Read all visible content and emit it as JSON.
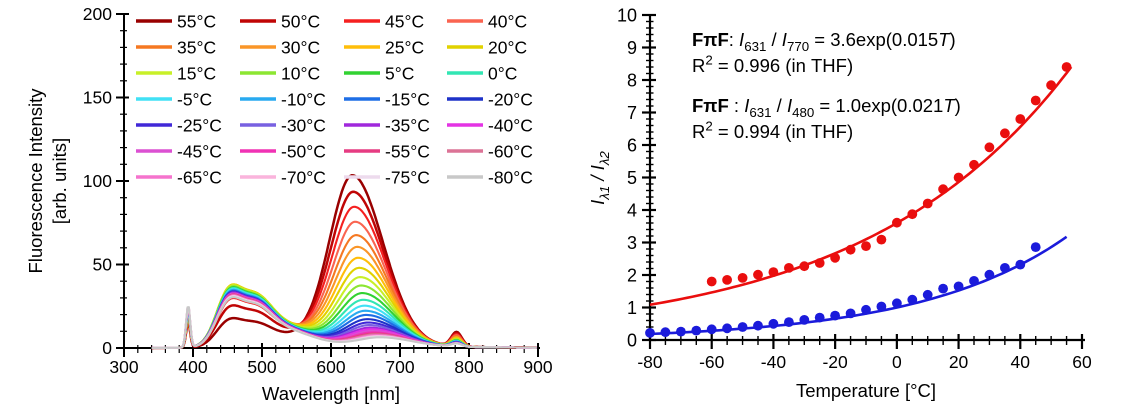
{
  "page": {
    "background": "#ffffff"
  },
  "chart_data": [
    {
      "type": "line",
      "title": "",
      "xlabel": "Wavelength [nm]",
      "ylabel_line1": "Fluorescence Intensity",
      "ylabel_line2": "[arb. units]",
      "xlim": [
        300,
        900
      ],
      "ylim": [
        0,
        200
      ],
      "x_major_ticks": [
        300,
        400,
        500,
        600,
        700,
        800,
        900
      ],
      "y_major_ticks": [
        0,
        50,
        100,
        150,
        200
      ],
      "x_minor_step": 20,
      "y_minor_step": 10,
      "grid": false,
      "legend_position": "top-inside, 7 rows x 4 columns",
      "series": [
        {
          "label": "55°C",
          "color": "#990000",
          "peak_631nm": 102,
          "band_480nm": 16,
          "spike_393nm": 15,
          "peak_shift_nm": 0
        },
        {
          "label": "50°C",
          "color": "#c00505",
          "peak_631nm": 92,
          "band_480nm": 23,
          "spike_393nm": 16,
          "peak_shift_nm": 1.5
        },
        {
          "label": "45°C",
          "color": "#f52020",
          "peak_631nm": 83,
          "band_480nm": 27,
          "spike_393nm": 16.5,
          "peak_shift_nm": 3
        },
        {
          "label": "40°C",
          "color": "#fa6450",
          "peak_631nm": 74,
          "band_480nm": 30,
          "spike_393nm": 17,
          "peak_shift_nm": 4.5
        },
        {
          "label": "35°C",
          "color": "#f57822",
          "peak_631nm": 66,
          "band_480nm": 33,
          "spike_393nm": 17.5,
          "peak_shift_nm": 6
        },
        {
          "label": "30°C",
          "color": "#fa9628",
          "peak_631nm": 59,
          "band_480nm": 34,
          "spike_393nm": 18,
          "peak_shift_nm": 7.5
        },
        {
          "label": "25°C",
          "color": "#ffbe0a",
          "peak_631nm": 52.5,
          "band_480nm": 34.5,
          "spike_393nm": 18.5,
          "peak_shift_nm": 9
        },
        {
          "label": "20°C",
          "color": "#e1d200",
          "peak_631nm": 46.5,
          "band_480nm": 34.5,
          "spike_393nm": 19,
          "peak_shift_nm": 10.5
        },
        {
          "label": "15°C",
          "color": "#c8f028",
          "peak_631nm": 41,
          "band_480nm": 34,
          "spike_393nm": 19.5,
          "peak_shift_nm": 12
        },
        {
          "label": "10°C",
          "color": "#8ce632",
          "peak_631nm": 36,
          "band_480nm": 33.5,
          "spike_393nm": 20,
          "peak_shift_nm": 13.5
        },
        {
          "label": "5°C",
          "color": "#32d232",
          "peak_631nm": 31.5,
          "band_480nm": 33,
          "spike_393nm": 20.5,
          "peak_shift_nm": 15
        },
        {
          "label": "0°C",
          "color": "#32e6b4",
          "peak_631nm": 27.5,
          "band_480nm": 32.5,
          "spike_393nm": 21,
          "peak_shift_nm": 16.5
        },
        {
          "label": "-5°C",
          "color": "#41e1f5",
          "peak_631nm": 24,
          "band_480nm": 32,
          "spike_393nm": 21.5,
          "peak_shift_nm": 18
        },
        {
          "label": "-10°C",
          "color": "#28aaf0",
          "peak_631nm": 21,
          "band_480nm": 31.5,
          "spike_393nm": 22,
          "peak_shift_nm": 19.5
        },
        {
          "label": "-15°C",
          "color": "#1e6ee6",
          "peak_631nm": 18.5,
          "band_480nm": 31,
          "spike_393nm": 22.5,
          "peak_shift_nm": 21
        },
        {
          "label": "-20°C",
          "color": "#1e32c8",
          "peak_631nm": 16,
          "band_480nm": 30.5,
          "spike_393nm": 23,
          "peak_shift_nm": 22.5
        },
        {
          "label": "-25°C",
          "color": "#4128d7",
          "peak_631nm": 14,
          "band_480nm": 30.5,
          "spike_393nm": 23.2,
          "peak_shift_nm": 24
        },
        {
          "label": "-30°C",
          "color": "#7861e1",
          "peak_631nm": 12.5,
          "band_480nm": 30,
          "spike_393nm": 23.4,
          "peak_shift_nm": 25.5
        },
        {
          "label": "-35°C",
          "color": "#a028dc",
          "peak_631nm": 11,
          "band_480nm": 30,
          "spike_393nm": 23.6,
          "peak_shift_nm": 27
        },
        {
          "label": "-40°C",
          "color": "#e433e4",
          "peak_631nm": 10,
          "band_480nm": 29.5,
          "spike_393nm": 23.8,
          "peak_shift_nm": 28.5
        },
        {
          "label": "-45°C",
          "color": "#dc50d2",
          "peak_631nm": 9,
          "band_480nm": 29.5,
          "spike_393nm": 24,
          "peak_shift_nm": 30
        },
        {
          "label": "-50°C",
          "color": "#f032b4",
          "peak_631nm": 8.2,
          "band_480nm": 29,
          "spike_393nm": 24.2,
          "peak_shift_nm": 31.5
        },
        {
          "label": "-55°C",
          "color": "#e63c82",
          "peak_631nm": 7.5,
          "band_480nm": 29,
          "spike_393nm": 24.4,
          "peak_shift_nm": 33
        },
        {
          "label": "-60°C",
          "color": "#dc7396",
          "peak_631nm": 7,
          "band_480nm": 28.5,
          "spike_393nm": 24.6,
          "peak_shift_nm": 34.5
        },
        {
          "label": "-65°C",
          "color": "#f573cd",
          "peak_631nm": 6.5,
          "band_480nm": 28.5,
          "spike_393nm": 24.8,
          "peak_shift_nm": 36
        },
        {
          "label": "-70°C",
          "color": "#fab4dc",
          "peak_631nm": 6,
          "band_480nm": 28,
          "spike_393nm": 25,
          "peak_shift_nm": 37.5
        },
        {
          "label": "-75°C",
          "color": "#eddbed",
          "peak_631nm": 5.6,
          "band_480nm": 28,
          "spike_393nm": 25.2,
          "peak_shift_nm": 39
        },
        {
          "label": "-80°C",
          "color": "#c8c8c8",
          "peak_631nm": 5.3,
          "band_480nm": 27.5,
          "spike_393nm": 25.4,
          "peak_shift_nm": 40.5
        }
      ]
    },
    {
      "type": "scatter",
      "title": "",
      "xlabel": "Temperature [°C]",
      "ylabel_segments": [
        {
          "t": "I",
          "i": 1
        },
        {
          "t": "λ1",
          "i": 1,
          "sub": 1
        },
        {
          "t": " / ",
          "i": 1
        },
        {
          "t": "I",
          "i": 1
        },
        {
          "t": "λ2",
          "i": 1,
          "sub": 1
        }
      ],
      "xlim": [
        -80,
        60
      ],
      "ylim": [
        0,
        10
      ],
      "x_major_step": 20,
      "x_minor_step": 5,
      "y_major_step": 1,
      "y_minor_step": 0.2,
      "grid": false,
      "series": [
        {
          "name": "I631 / I770",
          "color": "#ea0e0e",
          "marker": "circle",
          "fit": {
            "equation": "3.6exp(0.015T)",
            "A": 3.6,
            "k": 0.015,
            "range": [
              -80,
              57
            ]
          },
          "points": [
            [
              -60,
              1.8
            ],
            [
              -55,
              1.85
            ],
            [
              -50,
              1.91
            ],
            [
              -45,
              2.01
            ],
            [
              -40,
              2.09
            ],
            [
              -35,
              2.22
            ],
            [
              -30,
              2.27
            ],
            [
              -25,
              2.37
            ],
            [
              -20,
              2.53
            ],
            [
              -15,
              2.78
            ],
            [
              -10,
              2.89
            ],
            [
              -5,
              3.09
            ],
            [
              0,
              3.61
            ],
            [
              5,
              3.87
            ],
            [
              10,
              4.2
            ],
            [
              15,
              4.64
            ],
            [
              20,
              5.0
            ],
            [
              25,
              5.39
            ],
            [
              30,
              5.93
            ],
            [
              35,
              6.36
            ],
            [
              40,
              6.8
            ],
            [
              45,
              7.37
            ],
            [
              50,
              7.84
            ],
            [
              55,
              8.4
            ]
          ]
        },
        {
          "name": "I631 / I480",
          "color": "#1b1bdb",
          "marker": "circle",
          "fit": {
            "equation": "1.0exp(0.021T)",
            "A": 1.0,
            "k": 0.021,
            "range": [
              -80,
              55
            ]
          },
          "points": [
            [
              -80,
              0.22
            ],
            [
              -75,
              0.24
            ],
            [
              -70,
              0.26
            ],
            [
              -65,
              0.29
            ],
            [
              -60,
              0.33
            ],
            [
              -55,
              0.36
            ],
            [
              -50,
              0.4
            ],
            [
              -45,
              0.44
            ],
            [
              -40,
              0.5
            ],
            [
              -35,
              0.55
            ],
            [
              -30,
              0.62
            ],
            [
              -25,
              0.69
            ],
            [
              -20,
              0.75
            ],
            [
              -15,
              0.82
            ],
            [
              -10,
              0.93
            ],
            [
              -5,
              1.03
            ],
            [
              0,
              1.13
            ],
            [
              5,
              1.24
            ],
            [
              10,
              1.39
            ],
            [
              15,
              1.58
            ],
            [
              20,
              1.65
            ],
            [
              25,
              1.82
            ],
            [
              30,
              2.01
            ],
            [
              35,
              2.22
            ],
            [
              40,
              2.32
            ],
            [
              45,
              2.86
            ]
          ]
        }
      ],
      "annotations": [
        {
          "lines": [
            [
              {
                "t": "FπF",
                "b": 1
              },
              {
                "t": ": "
              },
              {
                "t": "I",
                "i": 1
              },
              {
                "t": "631",
                "sub": 1
              },
              {
                "t": " / "
              },
              {
                "t": "I",
                "i": 1
              },
              {
                "t": "770",
                "sub": 1
              },
              {
                "t": " = 3.6exp(0.015"
              },
              {
                "t": "T",
                "i": 1
              },
              {
                "t": ")"
              }
            ],
            [
              {
                "t": "R"
              },
              {
                "t": "2",
                "sup": 1
              },
              {
                "t": " = 0.996 (in THF)"
              }
            ]
          ]
        },
        {
          "lines": [
            [
              {
                "t": "FπF",
                "b": 1
              },
              {
                "t": " : "
              },
              {
                "t": "I",
                "i": 1
              },
              {
                "t": "631",
                "sub": 1
              },
              {
                "t": " / "
              },
              {
                "t": "I",
                "i": 1
              },
              {
                "t": "480",
                "sub": 1
              },
              {
                "t": " = 1.0exp(0.021"
              },
              {
                "t": "T",
                "i": 1
              },
              {
                "t": ")"
              }
            ],
            [
              {
                "t": "R"
              },
              {
                "t": "2",
                "sup": 1
              },
              {
                "t": " = 0.994 (in THF)"
              }
            ]
          ]
        }
      ]
    }
  ]
}
